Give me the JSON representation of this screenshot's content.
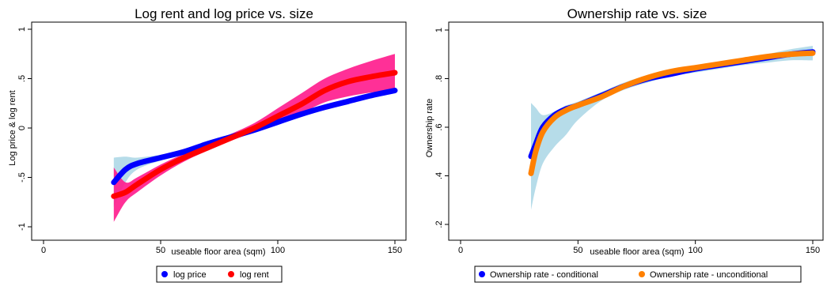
{
  "chart_data": [
    {
      "type": "line",
      "title": "Log rent and log price vs. size",
      "xlabel": "useable floor area (sqm)",
      "ylabel": "Log price & log rent",
      "xlim": [
        0,
        150
      ],
      "ylim": [
        -1,
        1
      ],
      "xticks": [
        0,
        50,
        100,
        150
      ],
      "yticks": [
        -1,
        -0.5,
        0,
        0.5,
        1
      ],
      "ytick_labels": [
        "-1",
        "-.5",
        "0",
        ".5",
        "1"
      ],
      "grid": false,
      "legend_position": "bottom",
      "series": [
        {
          "name": "log price",
          "color": "#0000ff",
          "band_color": "#a9d6e5",
          "x": [
            30,
            35,
            40,
            50,
            60,
            70,
            80,
            90,
            100,
            110,
            120,
            130,
            140,
            150
          ],
          "y": [
            -0.55,
            -0.42,
            -0.36,
            -0.3,
            -0.24,
            -0.16,
            -0.09,
            -0.02,
            0.06,
            0.14,
            0.21,
            0.27,
            0.33,
            0.38
          ],
          "band_upper": [
            -0.3,
            -0.29,
            -0.3,
            -0.27,
            -0.22,
            -0.14,
            -0.07,
            0.0,
            0.08,
            0.16,
            0.23,
            0.29,
            0.35,
            0.41
          ],
          "band_lower": [
            -0.8,
            -0.55,
            -0.42,
            -0.33,
            -0.26,
            -0.18,
            -0.11,
            -0.04,
            0.04,
            0.12,
            0.19,
            0.25,
            0.31,
            0.35
          ]
        },
        {
          "name": "log rent",
          "color": "#ff0000",
          "band_color": "#ff1a8c",
          "x": [
            30,
            35,
            40,
            50,
            60,
            70,
            80,
            90,
            100,
            110,
            120,
            130,
            140,
            150
          ],
          "y": [
            -0.69,
            -0.65,
            -0.57,
            -0.42,
            -0.3,
            -0.2,
            -0.1,
            0.0,
            0.12,
            0.24,
            0.38,
            0.47,
            0.52,
            0.56
          ],
          "band_upper": [
            -0.4,
            -0.55,
            -0.5,
            -0.37,
            -0.26,
            -0.16,
            -0.06,
            0.05,
            0.2,
            0.35,
            0.5,
            0.6,
            0.68,
            0.75
          ],
          "band_lower": [
            -0.95,
            -0.75,
            -0.65,
            -0.48,
            -0.34,
            -0.23,
            -0.13,
            -0.04,
            0.06,
            0.15,
            0.26,
            0.32,
            0.36,
            0.38
          ]
        }
      ]
    },
    {
      "type": "line",
      "title": "Ownership rate vs. size",
      "xlabel": "useable floor area (sqm)",
      "ylabel": "Ownership rate",
      "xlim": [
        0,
        150
      ],
      "ylim": [
        0.2,
        1
      ],
      "xticks": [
        0,
        50,
        100,
        150
      ],
      "yticks": [
        0.2,
        0.4,
        0.6,
        0.8,
        1
      ],
      "ytick_labels": [
        ".2",
        ".4",
        ".6",
        ".8",
        "1"
      ],
      "grid": false,
      "legend_position": "bottom",
      "series": [
        {
          "name": "Ownership rate - conditional",
          "color": "#0000ff",
          "band_color": "#a9d6e5",
          "x": [
            30,
            32,
            35,
            40,
            45,
            50,
            60,
            70,
            80,
            90,
            100,
            110,
            120,
            130,
            140,
            150
          ],
          "y": [
            0.48,
            0.53,
            0.6,
            0.65,
            0.675,
            0.69,
            0.73,
            0.77,
            0.8,
            0.82,
            0.84,
            0.855,
            0.87,
            0.885,
            0.9,
            0.91
          ],
          "band_upper": [
            0.7,
            0.68,
            0.65,
            0.665,
            0.69,
            0.705,
            0.745,
            0.785,
            0.815,
            0.835,
            0.855,
            0.87,
            0.885,
            0.9,
            0.92,
            0.935
          ],
          "band_lower": [
            0.26,
            0.35,
            0.45,
            0.52,
            0.57,
            0.63,
            0.71,
            0.755,
            0.785,
            0.81,
            0.825,
            0.84,
            0.855,
            0.865,
            0.875,
            0.875
          ]
        },
        {
          "name": "Ownership rate - unconditional",
          "color": "#ff8000",
          "x": [
            30,
            32,
            35,
            40,
            45,
            50,
            60,
            70,
            80,
            90,
            100,
            110,
            120,
            130,
            140,
            150
          ],
          "y": [
            0.41,
            0.5,
            0.58,
            0.64,
            0.67,
            0.69,
            0.725,
            0.77,
            0.805,
            0.83,
            0.845,
            0.86,
            0.875,
            0.89,
            0.9,
            0.905
          ]
        }
      ]
    }
  ]
}
